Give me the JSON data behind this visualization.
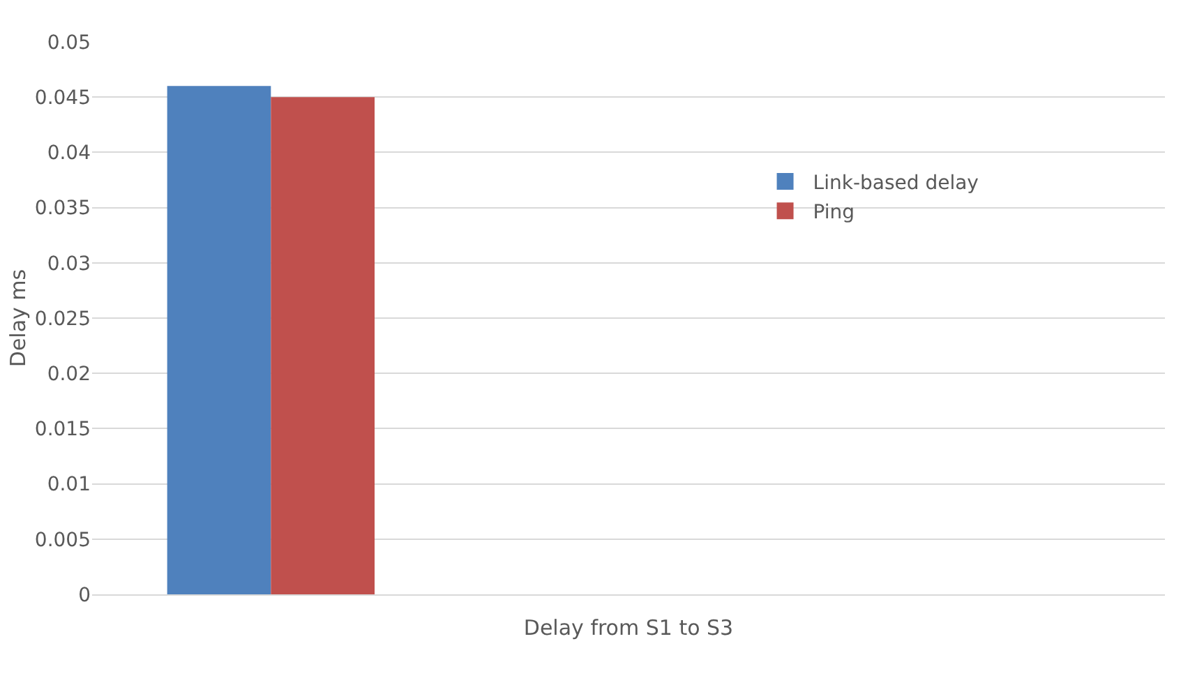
{
  "chart_data": {
    "type": "bar",
    "xlabel": "Delay from S1 to S3",
    "ylabel": "Delay ms",
    "categories": [
      null,
      null,
      null
    ],
    "series": [
      {
        "name": "Link-based delay",
        "color": "#4f81bd",
        "values": [
          0.046,
          null,
          null
        ]
      },
      {
        "name": "Ping",
        "color": "#c0504d",
        "values": [
          0.045,
          null,
          null
        ]
      }
    ],
    "ylim": [
      0,
      0.05
    ],
    "yticks": [
      0,
      0.005,
      0.01,
      0.015,
      0.02,
      0.025,
      0.03,
      0.035,
      0.04,
      0.045,
      0.05
    ],
    "grid": "y",
    "legend": "right"
  }
}
